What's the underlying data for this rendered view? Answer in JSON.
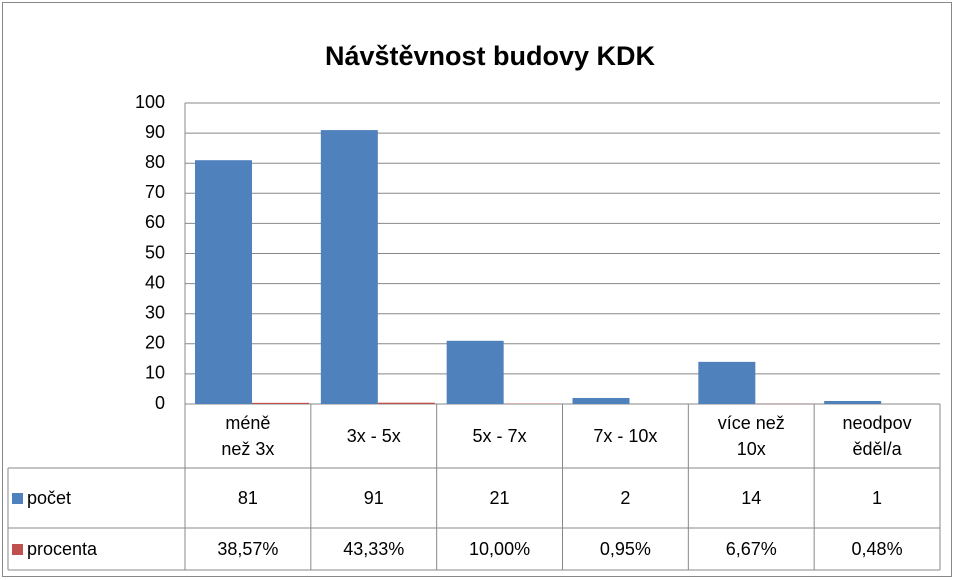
{
  "chart_data": {
    "type": "bar",
    "title": "Návštěvnost budovy KDK",
    "categories": [
      "méně než 3x",
      "3x - 5x",
      "5x - 7x",
      "7x - 10x",
      "více než 10x",
      "neodpověděl/a"
    ],
    "series": [
      {
        "name": "počet",
        "color": "#4f81bd",
        "values": [
          81,
          91,
          21,
          2,
          14,
          1
        ]
      },
      {
        "name": "procenta",
        "color": "#c0504d",
        "values": [
          0.3857,
          0.4333,
          0.1,
          0.0095,
          0.0667,
          0.0048
        ],
        "value_labels": [
          "38,57%",
          "43,33%",
          "10,00%",
          "0,95%",
          "6,67%",
          "0,48%"
        ]
      }
    ],
    "ylim": [
      0,
      100
    ],
    "yticks": [
      0,
      10,
      20,
      30,
      40,
      50,
      60,
      70,
      80,
      90,
      100
    ],
    "grid": true,
    "data_table": true
  }
}
